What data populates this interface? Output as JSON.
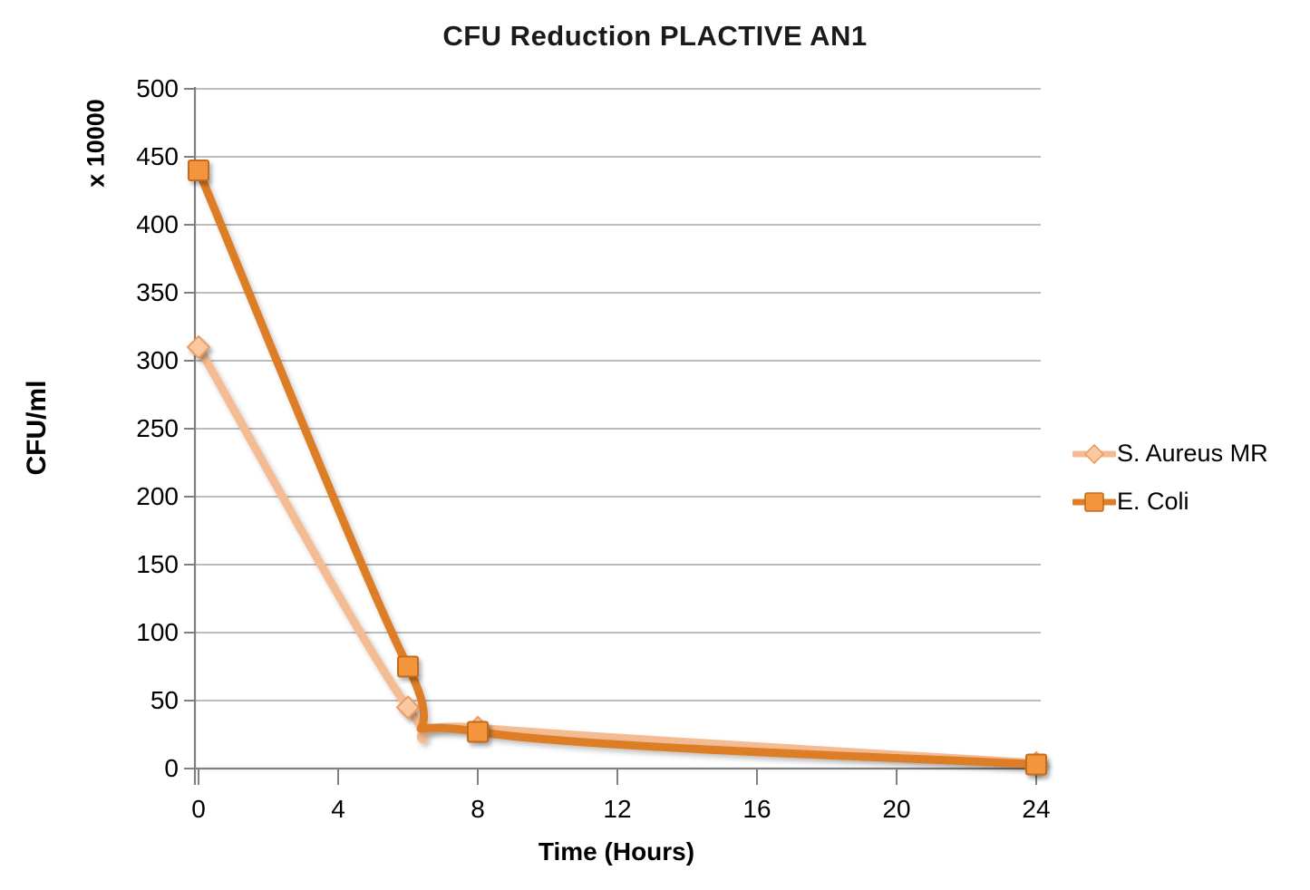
{
  "title": "CFU Reduction PLACTIVE AN1",
  "chart_data": {
    "type": "line",
    "title": "CFU Reduction PLACTIVE AN1",
    "xlabel": "Time (Hours)",
    "ylabel": "CFU/ml",
    "ylabel_multiplier": "x 10000",
    "x": [
      0,
      6,
      8,
      24
    ],
    "series": [
      {
        "name": "S. Aureus MR",
        "values": [
          310,
          45,
          30,
          4
        ],
        "marker": "diamond",
        "line_color": "#F5BB92",
        "marker_fill": "#FAC9A1",
        "marker_stroke": "#EC9C60"
      },
      {
        "name": "E. Coli",
        "values": [
          440,
          75,
          27,
          3
        ],
        "marker": "square",
        "line_color": "#DD7E28",
        "marker_fill": "#F2953D",
        "marker_stroke": "#C66A1B"
      }
    ],
    "xlim": [
      0,
      24
    ],
    "ylim": [
      0,
      500
    ],
    "x_ticks": [
      "0",
      "4",
      "8",
      "12",
      "16",
      "20",
      "24"
    ],
    "y_ticks": [
      "500",
      "450",
      "400",
      "350",
      "300",
      "250",
      "200",
      "150",
      "100",
      "50",
      "0"
    ],
    "grid": "horizontal",
    "gridline_color": "#A6A6A6",
    "axis_color": "#808080",
    "legend_position": "right",
    "smooth": true
  }
}
